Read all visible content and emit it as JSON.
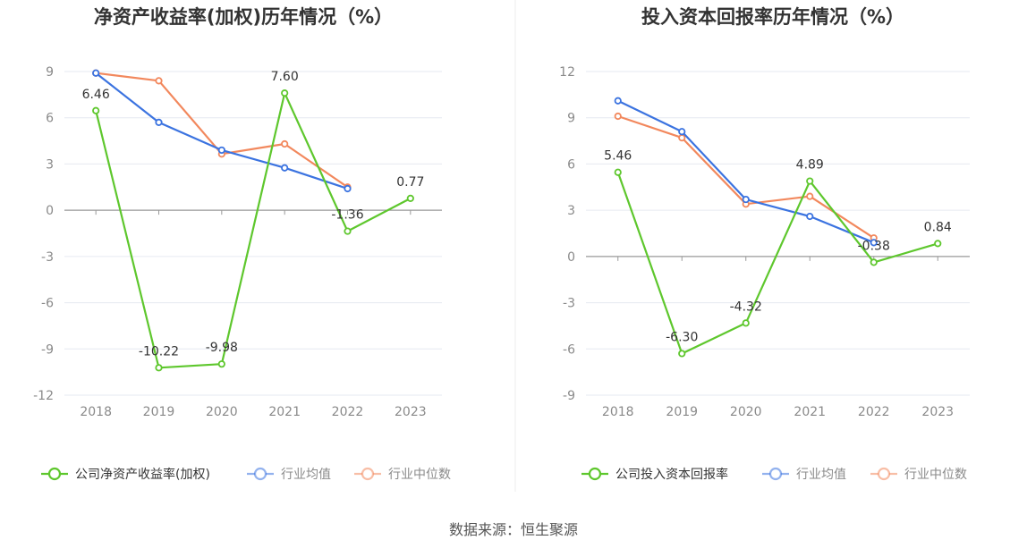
{
  "source": "数据来源：恒生聚源",
  "colors": {
    "company": "#5ec72d",
    "avg": "#3b73e0",
    "median": "#f2885d",
    "grid": "#e6e9f0",
    "axis": "#999999"
  },
  "chart_data": [
    {
      "type": "line",
      "title": "净资产收益率(加权)历年情况（%）",
      "categories": [
        "2018",
        "2019",
        "2020",
        "2021",
        "2022",
        "2023"
      ],
      "ylim": [
        -12,
        9
      ],
      "yticks": [
        9,
        6,
        3,
        0,
        -3,
        -6,
        -9,
        -12
      ],
      "yticklabels": [
        "9",
        "6",
        "3",
        "0",
        "-3",
        "-6",
        "-9",
        "-12"
      ],
      "grid": true,
      "legend_position": "bottom",
      "series": [
        {
          "name": "公司净资产收益率(加权)",
          "values": [
            6.46,
            -10.22,
            -9.98,
            7.6,
            -1.36,
            0.77
          ],
          "labels": [
            "6.46",
            "-10.22",
            "-9.98",
            "7.60",
            "-1.36",
            "0.77"
          ]
        },
        {
          "name": "行业均值",
          "values": [
            8.9,
            5.7,
            3.9,
            2.75,
            1.4,
            null
          ]
        },
        {
          "name": "行业中位数",
          "values": [
            8.9,
            8.4,
            3.65,
            4.3,
            1.5,
            null
          ]
        }
      ]
    },
    {
      "type": "line",
      "title": "投入资本回报率历年情况（%）",
      "categories": [
        "2018",
        "2019",
        "2020",
        "2021",
        "2022",
        "2023"
      ],
      "ylim": [
        -9,
        12
      ],
      "yticks": [
        12,
        9,
        6,
        3,
        0,
        -3,
        -6,
        -9
      ],
      "yticklabels": [
        "12",
        "9",
        "6",
        "3",
        "0",
        "-3",
        "-6",
        "-9"
      ],
      "grid": true,
      "legend_position": "bottom",
      "series": [
        {
          "name": "公司投入资本回报率",
          "values": [
            5.46,
            -6.3,
            -4.32,
            4.89,
            -0.38,
            0.84
          ],
          "labels": [
            "5.46",
            "-6.30",
            "-4.32",
            "4.89",
            "-0.38",
            "0.84"
          ]
        },
        {
          "name": "行业均值",
          "values": [
            10.1,
            8.1,
            3.7,
            2.6,
            0.9,
            null
          ]
        },
        {
          "name": "行业中位数",
          "values": [
            9.1,
            7.7,
            3.4,
            3.9,
            1.2,
            null
          ]
        }
      ]
    }
  ]
}
